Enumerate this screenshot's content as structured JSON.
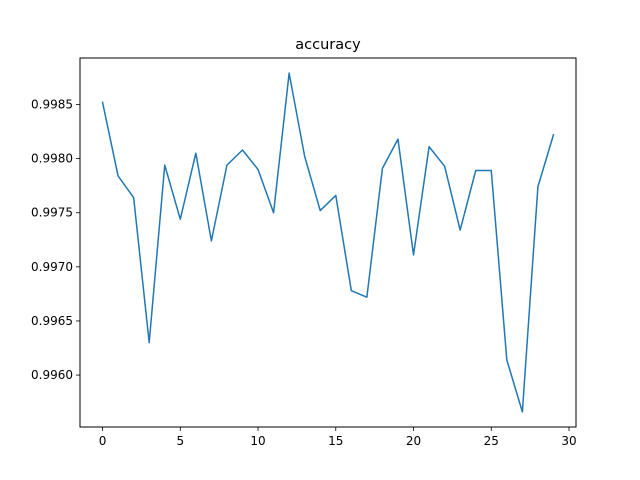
{
  "chart_data": {
    "type": "line",
    "title": "accuracy",
    "xlabel": "",
    "ylabel": "",
    "xlim": [
      -1.45,
      30.45
    ],
    "ylim": [
      0.99552,
      0.99893
    ],
    "xticks": [
      0,
      5,
      10,
      15,
      20,
      25,
      30
    ],
    "xtick_labels": [
      "0",
      "5",
      "10",
      "15",
      "20",
      "25",
      "30"
    ],
    "yticks": [
      0.996,
      0.9965,
      0.997,
      0.9975,
      0.998,
      0.9985
    ],
    "ytick_labels": [
      "0.9960",
      "0.9965",
      "0.9970",
      "0.9975",
      "0.9980",
      "0.9985"
    ],
    "grid": false,
    "series": [
      {
        "color": "#1f77b4",
        "x": [
          0,
          1,
          2,
          3,
          4,
          5,
          6,
          7,
          8,
          9,
          10,
          11,
          12,
          13,
          14,
          15,
          16,
          17,
          18,
          19,
          20,
          21,
          22,
          23,
          24,
          25,
          26,
          27,
          28,
          29
        ],
        "values": [
          0.99852,
          0.99784,
          0.99764,
          0.9963,
          0.99794,
          0.99744,
          0.99805,
          0.99724,
          0.99794,
          0.99808,
          0.9979,
          0.9975,
          0.99879,
          0.99802,
          0.99752,
          0.99766,
          0.99678,
          0.99672,
          0.99791,
          0.99818,
          0.99711,
          0.99811,
          0.99793,
          0.99734,
          0.99789,
          0.99789,
          0.99614,
          0.99566,
          0.99774,
          0.99822
        ]
      }
    ]
  }
}
